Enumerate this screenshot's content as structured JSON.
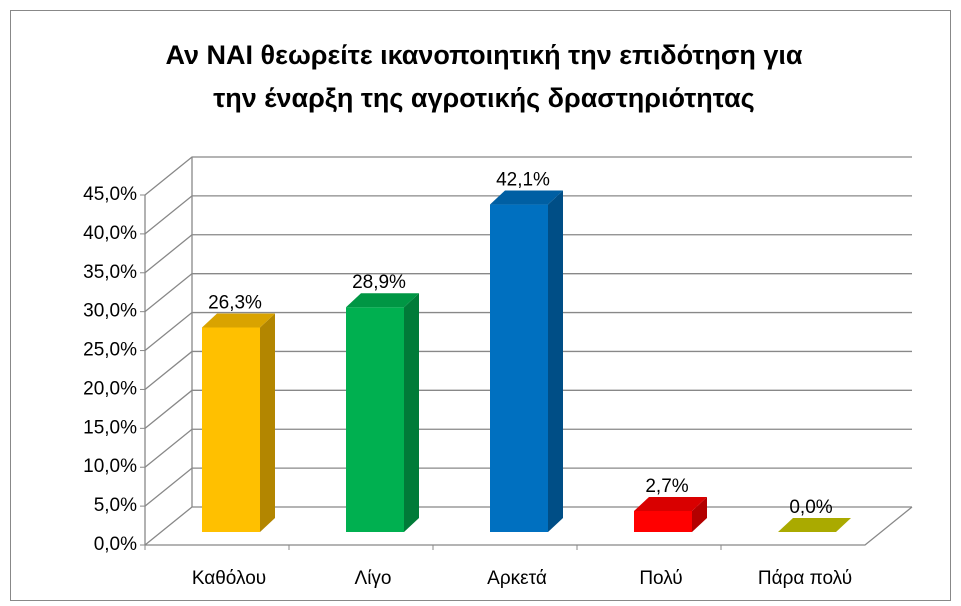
{
  "chart_data": {
    "type": "bar3d",
    "title": [
      "Αν ΝΑΙ θεωρείτε ικανοποιητική την επιδότηση για",
      "την έναρξη της αγροτικής δραστηριότητας"
    ],
    "categories": [
      "Καθόλου",
      "Λίγο",
      "Αρκετά",
      "Πολύ",
      "Πάρα πολύ"
    ],
    "values": [
      26.3,
      28.9,
      42.1,
      2.7,
      0.0
    ],
    "value_labels": [
      "26,3%",
      "28,9%",
      "42,1%",
      "2,7%",
      "0,0%"
    ],
    "colors": [
      "#ffc000",
      "#00b050",
      "#0070c0",
      "#ff0000",
      "#c8c800"
    ],
    "ylim": [
      0,
      45
    ],
    "yticks": [
      {
        "value": 0,
        "label": "0,0%"
      },
      {
        "value": 5,
        "label": "5,0%"
      },
      {
        "value": 10,
        "label": "10,0%"
      },
      {
        "value": 15,
        "label": "15,0%"
      },
      {
        "value": 20,
        "label": "20,0%"
      },
      {
        "value": 25,
        "label": "25,0%"
      },
      {
        "value": 30,
        "label": "30,0%"
      },
      {
        "value": 35,
        "label": "35,0%"
      },
      {
        "value": 40,
        "label": "40,0%"
      },
      {
        "value": 45,
        "label": "45,0%"
      }
    ],
    "grid": true
  }
}
